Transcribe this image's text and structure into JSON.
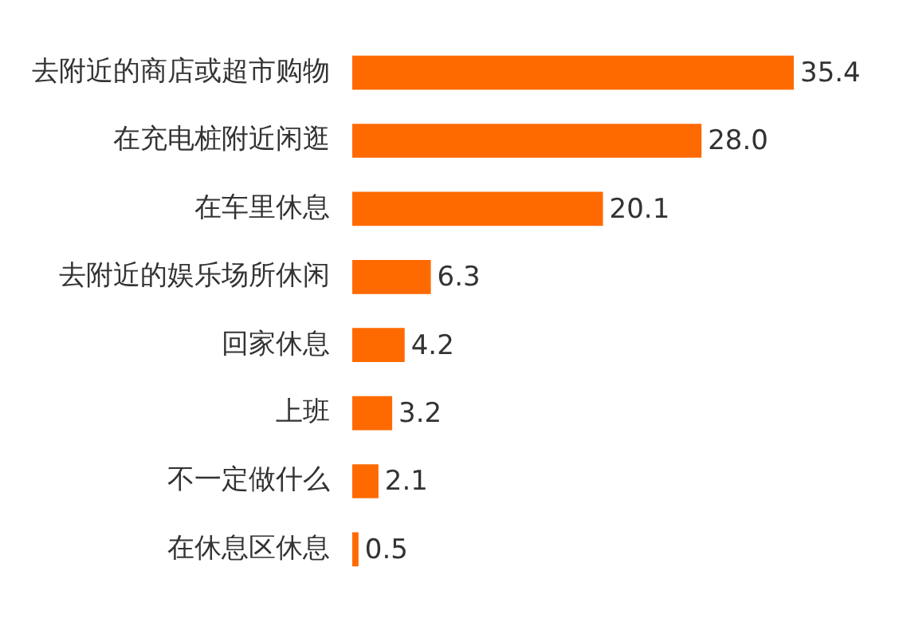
{
  "chart_data": {
    "type": "bar",
    "orientation": "horizontal",
    "categories": [
      "去附近的商店或超市购物",
      "在充电桩附近闲逛",
      "在车里休息",
      "去附近的娱乐场所休闲",
      "回家休息",
      "上班",
      "不一定做什么",
      "在休息区休息"
    ],
    "values": [
      35.4,
      28.0,
      20.1,
      6.3,
      4.2,
      3.2,
      2.1,
      0.5
    ],
    "value_labels": [
      "35.4",
      "28.0",
      "20.1",
      "6.3",
      "4.2",
      "3.2",
      "2.1",
      "0.5"
    ],
    "color": "#ff6a00",
    "legend": false,
    "tick_labels": "y"
  }
}
